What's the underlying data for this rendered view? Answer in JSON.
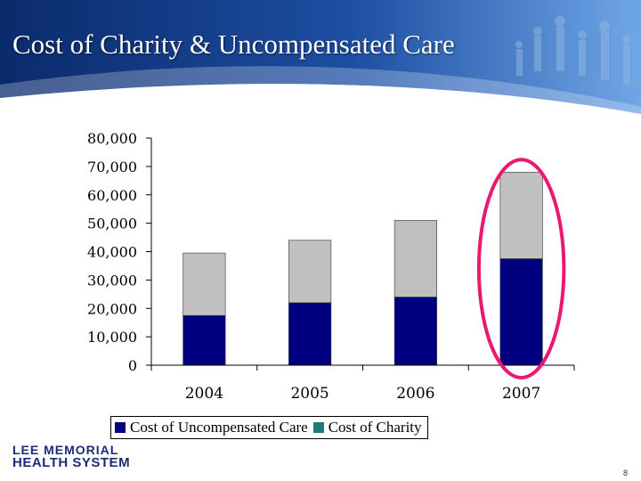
{
  "slide": {
    "title": "Cost of Charity & Uncompensated Care",
    "page_number": "8",
    "logo_line1": "LEE MEMORIAL",
    "logo_line2": "HEALTH SYSTEM"
  },
  "colors": {
    "banner_dark": "#0b2a6b",
    "banner_light": "#3f7fd0",
    "uncompensated": "#000080",
    "charity": "#c0c0c0",
    "highlight": "#e8196f",
    "legend_charity_swatch": "#1f7a7a"
  },
  "chart_data": {
    "type": "bar",
    "stacked": true,
    "categories": [
      "2004",
      "2005",
      "2006",
      "2007"
    ],
    "series": [
      {
        "name": "Cost of Uncompensated Care",
        "values": [
          17500,
          22000,
          24000,
          37500
        ]
      },
      {
        "name": "Cost of Charity",
        "values": [
          22000,
          22000,
          27000,
          30500
        ]
      }
    ],
    "ylim": [
      0,
      80000
    ],
    "yticks": [
      "0",
      "10,000",
      "20,000",
      "30,000",
      "40,000",
      "50,000",
      "60,000",
      "70,000",
      "80,000"
    ],
    "ytick_values": [
      0,
      10000,
      20000,
      30000,
      40000,
      50000,
      60000,
      70000,
      80000
    ],
    "grid": false,
    "legend_position": "bottom",
    "highlighted_category": "2007"
  }
}
